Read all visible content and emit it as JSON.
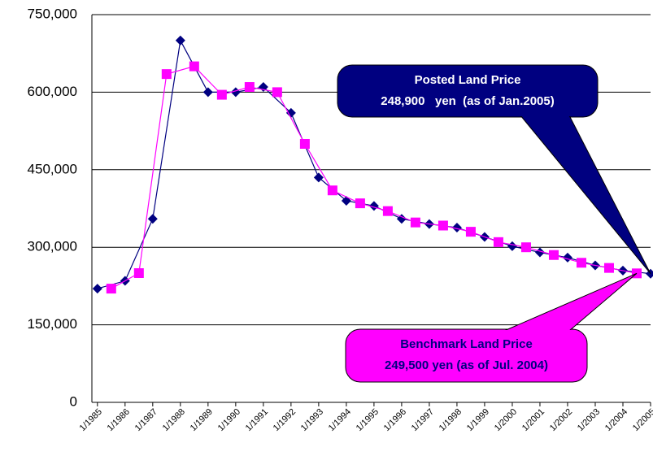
{
  "chart_data": {
    "type": "line",
    "xlim": [
      1984.8,
      2005.0
    ],
    "xticks": [
      {
        "value": 1985,
        "label": "1/1985"
      },
      {
        "value": 1986,
        "label": "1/1986"
      },
      {
        "value": 1987,
        "label": "1/1987"
      },
      {
        "value": 1988,
        "label": "1/1988"
      },
      {
        "value": 1989,
        "label": "1/1989"
      },
      {
        "value": 1990,
        "label": "1/1990"
      },
      {
        "value": 1991,
        "label": "1/1991"
      },
      {
        "value": 1992,
        "label": "1/1992"
      },
      {
        "value": 1993,
        "label": "1/1993"
      },
      {
        "value": 1994,
        "label": "1/1994"
      },
      {
        "value": 1995,
        "label": "1/1995"
      },
      {
        "value": 1996,
        "label": "1/1996"
      },
      {
        "value": 1997,
        "label": "1/1997"
      },
      {
        "value": 1998,
        "label": "1/1998"
      },
      {
        "value": 1999,
        "label": "1/1999"
      },
      {
        "value": 2000,
        "label": "1/2000"
      },
      {
        "value": 2001,
        "label": "1/2001"
      },
      {
        "value": 2002,
        "label": "1/2002"
      },
      {
        "value": 2003,
        "label": "1/2003"
      },
      {
        "value": 2004,
        "label": "1/2004"
      },
      {
        "value": 2005,
        "label": "1/2005"
      }
    ],
    "ylim": [
      0,
      750000
    ],
    "yticks": [
      0,
      {
        "value": 150000,
        "label": "150,000"
      },
      {
        "value": 300000,
        "label": "300,000"
      },
      {
        "value": 450000,
        "label": "450,000"
      },
      {
        "value": 600000,
        "label": "600,000"
      },
      {
        "value": 750000,
        "label": "750,000"
      }
    ],
    "grid": true,
    "series": [
      {
        "name": "Posted Land Price",
        "color": "#000080",
        "marker": "diamond",
        "x": [
          1985,
          1986,
          1987,
          1988,
          1989,
          1990,
          1991,
          1992,
          1993,
          1994,
          1995,
          1996,
          1997,
          1998,
          1999,
          2000,
          2001,
          2002,
          2003,
          2004,
          2005
        ],
        "values": [
          220000,
          235000,
          355000,
          700000,
          600000,
          600000,
          610000,
          560000,
          435000,
          390000,
          380000,
          355000,
          345000,
          338000,
          320000,
          302000,
          290000,
          280000,
          265000,
          255000,
          248900
        ]
      },
      {
        "name": "Benchmark Land Price",
        "color": "#ff00ff",
        "marker": "square",
        "x": [
          1985.5,
          1986.5,
          1987.5,
          1988.5,
          1989.5,
          1990.5,
          1991.5,
          1992.5,
          1993.5,
          1994.5,
          1995.5,
          1996.5,
          1997.5,
          1998.5,
          1999.5,
          2000.5,
          2001.5,
          2002.5,
          2003.5,
          2004.5
        ],
        "values": [
          220000,
          250000,
          635000,
          650000,
          595000,
          610000,
          600000,
          500000,
          410000,
          385000,
          370000,
          348000,
          342000,
          330000,
          310000,
          300000,
          285000,
          270000,
          260000,
          249500
        ]
      }
    ],
    "annotations": [
      {
        "lines": [
          "Posted Land Price",
          "248,900   yen  (as of Jan.2005)"
        ],
        "color": "#000080",
        "text_color": "#ffffff"
      },
      {
        "lines": [
          "Benchmark Land Price",
          "249,500 yen (as of Jul. 2004)"
        ],
        "color": "#ff00ff",
        "text_color": "#000080"
      }
    ]
  }
}
